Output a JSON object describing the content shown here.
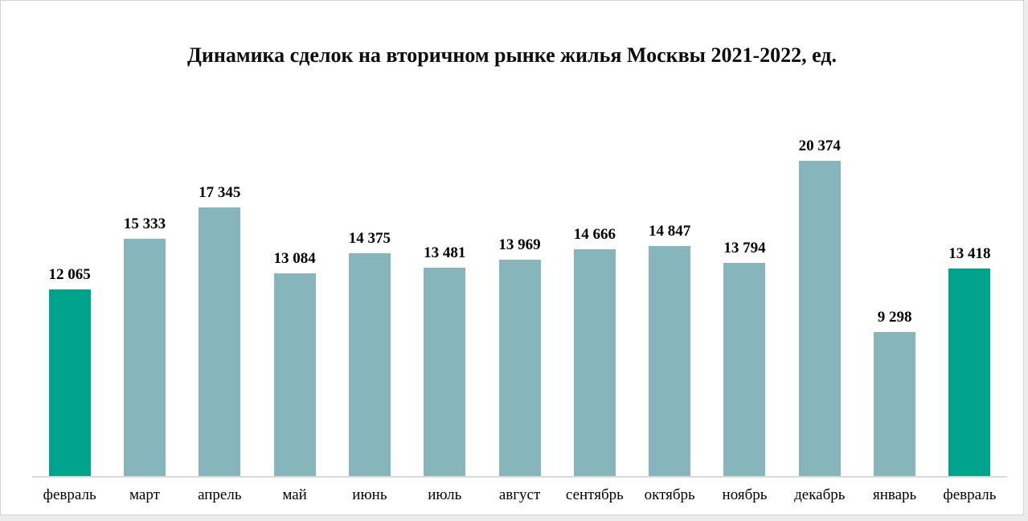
{
  "frame": {
    "page_background": "#ececec",
    "canvas_background": "#ffffff",
    "canvas_border_color": "#d2d2d2"
  },
  "chart_data": {
    "type": "bar",
    "title": "Динамика сделок на вторичном рынке жилья Москвы 2021-2022, ед.",
    "xlabel": "",
    "ylabel": "",
    "categories": [
      "февраль",
      "март",
      "апрель",
      "май",
      "июнь",
      "июль",
      "август",
      "сентябрь",
      "октябрь",
      "ноябрь",
      "декабрь",
      "январь",
      "февраль"
    ],
    "values": [
      12065,
      15333,
      17345,
      13084,
      14375,
      13481,
      13969,
      14666,
      14847,
      13794,
      20374,
      9298,
      13418
    ],
    "value_labels": [
      "12 065",
      "15 333",
      "17 345",
      "13 084",
      "14 375",
      "13 481",
      "13 969",
      "14 666",
      "14 847",
      "13 794",
      "20 374",
      "9 298",
      "13 418"
    ],
    "bar_colors": [
      "#00a38c",
      "#86b5bb",
      "#86b5bb",
      "#86b5bb",
      "#86b5bb",
      "#86b5bb",
      "#86b5bb",
      "#86b5bb",
      "#86b5bb",
      "#86b5bb",
      "#86b5bb",
      "#86b5bb",
      "#00a38c"
    ],
    "colors": {
      "highlight": "#00a38c",
      "default": "#86b5bb",
      "axis_line": "#d9d9d9",
      "label_text": "#000000"
    },
    "ylim": [
      0,
      20374
    ],
    "grid": false,
    "legend": "none",
    "axis": {
      "x_axis_visible": true,
      "y_axis_visible": false,
      "data_labels_visible": true
    }
  }
}
